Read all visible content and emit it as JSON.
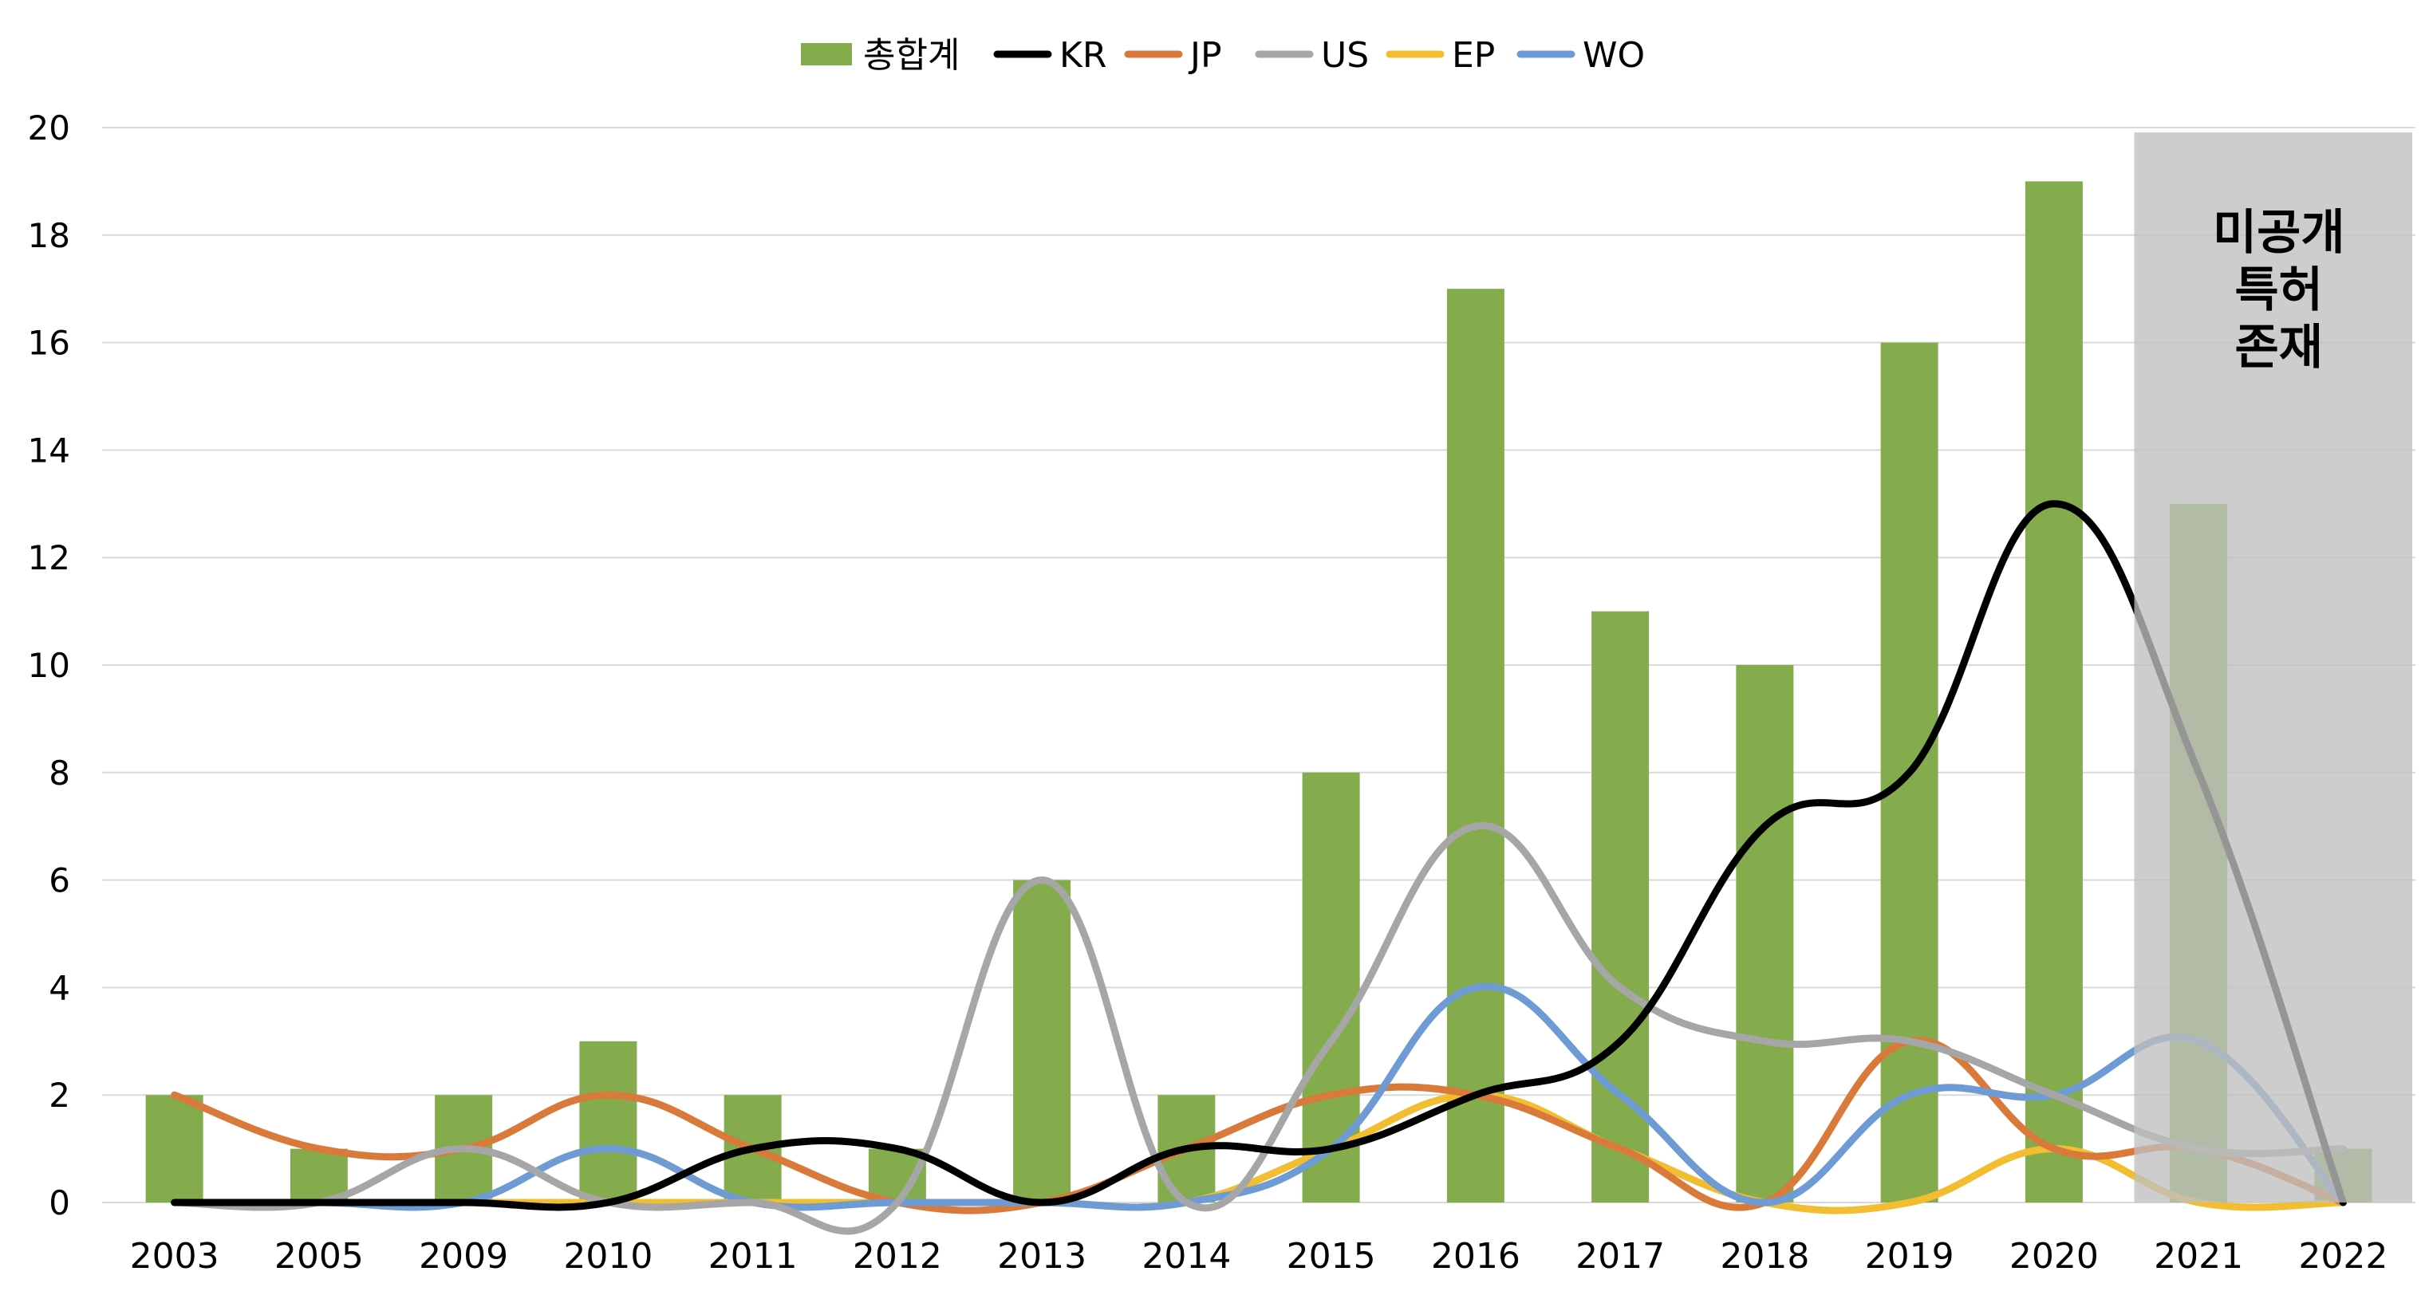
{
  "chart_data": {
    "type": "bar",
    "categories": [
      "2003",
      "2005",
      "2009",
      "2010",
      "2011",
      "2012",
      "2013",
      "2014",
      "2015",
      "2016",
      "2017",
      "2018",
      "2019",
      "2020",
      "2021",
      "2022"
    ],
    "ylim": [
      0,
      20
    ],
    "yticks": [
      0,
      2,
      4,
      6,
      8,
      10,
      12,
      14,
      16,
      18,
      20
    ],
    "grid": true,
    "legend_position": "top",
    "series": [
      {
        "name": "총합계",
        "kind": "bar",
        "color": "#84AC4D",
        "values": [
          2,
          1,
          2,
          3,
          2,
          1,
          6,
          2,
          8,
          17,
          11,
          10,
          16,
          19,
          13,
          1
        ]
      },
      {
        "name": "KR",
        "kind": "line",
        "color": "#000000",
        "values": [
          0,
          0,
          0,
          0,
          1,
          1,
          0,
          1,
          1,
          2,
          3,
          7,
          8,
          13,
          8,
          0
        ]
      },
      {
        "name": "JP",
        "kind": "line",
        "color": "#D9793A",
        "values": [
          2,
          1,
          1,
          2,
          1,
          0,
          0,
          1,
          2,
          2,
          1,
          0,
          3,
          1,
          1,
          0
        ]
      },
      {
        "name": "US",
        "kind": "line",
        "color": "#A6A6A6",
        "values": [
          0,
          0,
          1,
          0,
          0,
          0,
          6,
          0,
          3,
          7,
          4,
          3,
          3,
          2,
          1,
          1
        ]
      },
      {
        "name": "EP",
        "kind": "line",
        "color": "#F2BD30",
        "values": [
          0,
          0,
          0,
          0,
          0,
          0,
          0,
          0,
          1,
          2,
          1,
          0,
          0,
          1,
          0,
          0
        ]
      },
      {
        "name": "WO",
        "kind": "line",
        "color": "#6F9BD5",
        "values": [
          0,
          0,
          0,
          1,
          0,
          0,
          0,
          0,
          1,
          4,
          2,
          0,
          2,
          2,
          3,
          0
        ]
      }
    ],
    "annotation": {
      "lines": [
        "미공개",
        "특허",
        "존재"
      ],
      "categories": [
        "2021",
        "2022"
      ],
      "color": "#BFBFBF"
    }
  }
}
